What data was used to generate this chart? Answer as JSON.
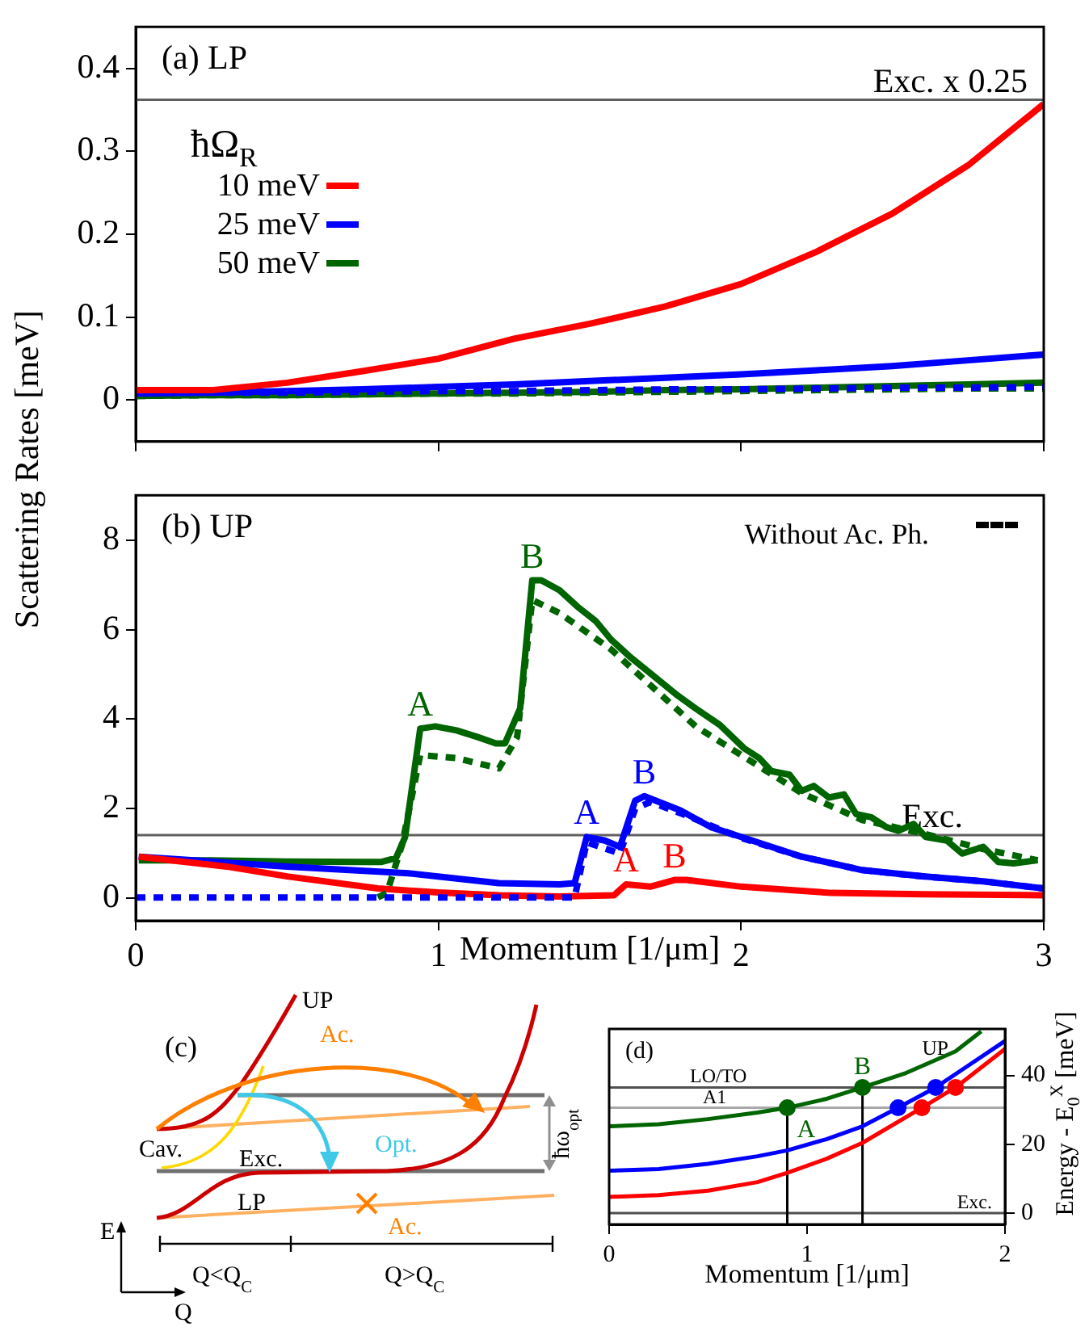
{
  "chart_data": [
    {
      "type": "line",
      "title": "(a) LP",
      "legend_title": "ħΩ$_{R}$",
      "legend": "left",
      "ylabel": "Scattering Rates [meV]",
      "xlim": [
        0,
        3
      ],
      "xticks": [
        0,
        1,
        2,
        3
      ],
      "ylim": [
        -0.05,
        0.45
      ],
      "yticks": [
        0,
        0.1,
        0.2,
        0.3,
        0.4
      ],
      "tick_labels": "y",
      "x": [
        0,
        0.25,
        0.5,
        0.75,
        1,
        1.25,
        1.5,
        1.75,
        2,
        2.25,
        2.5,
        2.75,
        3
      ],
      "series": [
        {
          "name": "10 meV",
          "color": "#ff0000",
          "values": [
            0.012,
            0.012,
            0.021,
            0.035,
            0.05,
            0.074,
            0.092,
            0.113,
            0.14,
            0.179,
            0.225,
            0.283,
            0.357
          ]
        },
        {
          "color": "#0000ff",
          "line_style": "dashed",
          "values": [
            0.008,
            0.009,
            0.009,
            0.01,
            0.011,
            0.011,
            0.012,
            0.013,
            0.013,
            0.014,
            0.015,
            0.015,
            0.016
          ]
        },
        {
          "color": "#006400",
          "line_style": "dashed",
          "values": [
            0.005,
            0.006,
            0.006,
            0.007,
            0.008,
            0.008,
            0.009,
            0.01,
            0.011,
            0.012,
            0.013,
            0.014,
            0.014
          ]
        },
        {
          "name": "25 meV",
          "color": "#0000ff",
          "values": [
            0.008,
            0.009,
            0.011,
            0.013,
            0.016,
            0.019,
            0.023,
            0.027,
            0.031,
            0.036,
            0.041,
            0.048,
            0.055
          ]
        },
        {
          "name": "50 meV",
          "color": "#006400",
          "values": [
            0.005,
            0.006,
            0.006,
            0.007,
            0.008,
            0.009,
            0.01,
            0.012,
            0.013,
            0.015,
            0.017,
            0.019,
            0.021
          ]
        }
      ],
      "ref_lines": [
        {
          "axis": "y",
          "value": 0.362,
          "label": "Exc. x 0.25",
          "color": "#606060"
        }
      ]
    },
    {
      "type": "line",
      "title": "(b) UP",
      "xlabel": "Momentum [1/μm]",
      "xlim": [
        0,
        3
      ],
      "xticks": [
        0,
        1,
        2,
        3
      ],
      "ylim": [
        -0.5,
        9
      ],
      "yticks": [
        0,
        2,
        4,
        6,
        8
      ],
      "series": [
        {
          "color": "#0000ff",
          "line_style": "dashed",
          "x": [
            0,
            0.4,
            0.8,
            1.2,
            1.45,
            1.49,
            1.6,
            1.65,
            1.7,
            1.8,
            2.0,
            2.2,
            2.4,
            2.6,
            2.8,
            3.0
          ],
          "values": [
            0.02,
            0.02,
            0.02,
            0.02,
            0.02,
            1.25,
            1.0,
            2.0,
            2.15,
            1.9,
            1.35,
            0.93,
            0.63,
            0.49,
            0.38,
            0.22
          ]
        },
        {
          "color": "#006400",
          "line_style": "dashed",
          "x": [
            0.8,
            0.83,
            0.88,
            0.94,
            1.06,
            1.2,
            1.26,
            1.31,
            1.4,
            1.57,
            1.85,
            2.0,
            2.2,
            2.4,
            2.6,
            2.8,
            2.98
          ],
          "values": [
            0.02,
            0.12,
            1.2,
            3.2,
            3.13,
            2.9,
            3.6,
            6.66,
            6.37,
            5.56,
            3.84,
            3.2,
            2.35,
            1.75,
            1.45,
            1.1,
            0.85
          ]
        },
        {
          "color": "#ff0000",
          "x": [
            0.01,
            0.3,
            0.5,
            0.8,
            1.0,
            1.2,
            1.4,
            1.58,
            1.62,
            1.7,
            1.78,
            1.82,
            2.0,
            2.3,
            2.6,
            3.0
          ],
          "values": [
            0.93,
            0.71,
            0.49,
            0.22,
            0.13,
            0.07,
            0.04,
            0.07,
            0.31,
            0.26,
            0.41,
            0.41,
            0.26,
            0.12,
            0.09,
            0.07
          ]
        },
        {
          "color": "#0000ff",
          "x": [
            0.01,
            0.5,
            0.9,
            1.2,
            1.4,
            1.45,
            1.49,
            1.55,
            1.6,
            1.65,
            1.68,
            1.8,
            1.9,
            2.0,
            2.2,
            2.4,
            2.6,
            2.8,
            3.0
          ],
          "values": [
            0.93,
            0.71,
            0.56,
            0.34,
            0.31,
            0.34,
            1.37,
            1.29,
            1.15,
            2.18,
            2.28,
            1.96,
            1.59,
            1.37,
            0.93,
            0.63,
            0.49,
            0.38,
            0.22
          ]
        },
        {
          "color": "#006400",
          "x": [
            0.01,
            0.25,
            0.5,
            0.75,
            0.81,
            0.86,
            0.89,
            0.94,
            0.99,
            1.06,
            1.13,
            1.19,
            1.22,
            1.27,
            1.31,
            1.34,
            1.4,
            1.46,
            1.52,
            1.57,
            1.63,
            1.71,
            1.79,
            1.85,
            1.93,
            2.01,
            2.06,
            2.1,
            2.16,
            2.2,
            2.24,
            2.29,
            2.34,
            2.38,
            2.43,
            2.48,
            2.52,
            2.57,
            2.61,
            2.68,
            2.73,
            2.8,
            2.85,
            2.9,
            2.98
          ],
          "values": [
            0.85,
            0.85,
            0.82,
            0.81,
            0.81,
            0.9,
            1.37,
            3.79,
            3.84,
            3.75,
            3.6,
            3.46,
            3.46,
            4.24,
            7.1,
            7.1,
            6.88,
            6.51,
            6.19,
            5.78,
            5.41,
            4.97,
            4.53,
            4.24,
            3.87,
            3.35,
            3.13,
            2.84,
            2.76,
            2.4,
            2.51,
            2.25,
            2.32,
            1.88,
            1.81,
            1.59,
            1.51,
            1.66,
            1.37,
            1.29,
            1.0,
            1.15,
            0.81,
            0.78,
            0.85
          ]
        }
      ],
      "ref_lines": [
        {
          "axis": "y",
          "value": 1.41,
          "label": "Exc.",
          "color": "#606060"
        }
      ],
      "annotations": [
        {
          "text": "A",
          "x": 0.94,
          "y": 3.79
        },
        {
          "text": "B",
          "x": 1.31,
          "y": 7.1
        },
        {
          "text": "A",
          "x": 1.49,
          "y": 1.37
        },
        {
          "text": "B",
          "x": 1.68,
          "y": 2.28
        },
        {
          "text": "A",
          "x": 1.62,
          "y": 0.31
        },
        {
          "text": "B",
          "x": 1.78,
          "y": 0.41
        },
        "Without Ac. Ph."
      ]
    },
    {
      "type": "other",
      "title": "(c)",
      "annotations": [
        "UP",
        "Ac.",
        "Cav.",
        "Exc.",
        "Opt.",
        "LP",
        "Ac.",
        "Q<Q$_{C}$",
        "Q>Q$_{C}$",
        "E",
        "Q",
        "ħω$_{opt}$"
      ]
    },
    {
      "type": "line",
      "title": "(d)",
      "xlabel": "Momentum [1/μm]",
      "ylabel": "Energy - E$_{0}$$^{X}$ [meV]",
      "xlim": [
        0,
        2
      ],
      "xticks": [
        0,
        1,
        2
      ],
      "ylim": [
        -3.3,
        53.5
      ],
      "yticks": [
        0,
        20,
        40
      ],
      "series": [
        {
          "color": "#006400",
          "x": [
            0,
            0.25,
            0.5,
            0.75,
            0.9,
            1.1,
            1.28,
            1.5,
            1.75,
            1.88
          ],
          "values": [
            25.2,
            25.8,
            27.3,
            29.2,
            30.6,
            33.2,
            36.5,
            40.7,
            47,
            52.8
          ]
        },
        {
          "color": "#0000ff",
          "x": [
            0,
            0.25,
            0.5,
            0.75,
            0.9,
            1.1,
            1.28,
            1.46,
            1.65,
            1.8,
            2
          ],
          "values": [
            12.3,
            12.8,
            14.3,
            16.5,
            18.2,
            21.5,
            25.2,
            30.6,
            36.5,
            42.3,
            50
          ]
        },
        {
          "color": "#ff0000",
          "x": [
            0,
            0.25,
            0.5,
            0.75,
            0.9,
            1.1,
            1.28,
            1.58,
            1.75,
            2
          ],
          "values": [
            4.7,
            5.2,
            6.5,
            9,
            11.7,
            15.8,
            20.4,
            30.6,
            36.5,
            47.7
          ]
        },
        {
          "type": "scatter",
          "marker": "circle",
          "color": "#006400",
          "x": [
            0.9,
            1.28
          ],
          "values": [
            30.6,
            36.5
          ]
        },
        {
          "type": "scatter",
          "marker": "circle",
          "color": "#0000ff",
          "x": [
            1.46,
            1.65
          ],
          "values": [
            30.6,
            36.5
          ]
        },
        {
          "type": "scatter",
          "marker": "circle",
          "color": "#ff0000",
          "x": [
            1.58,
            1.75
          ],
          "values": [
            30.6,
            36.5
          ]
        }
      ],
      "ref_lines": [
        {
          "axis": "y",
          "value": 36.5,
          "label": "LO/TO",
          "color": "#505050"
        },
        {
          "axis": "y",
          "value": 30.6,
          "label": "A1",
          "color": "#a8a8a8"
        },
        {
          "axis": "y",
          "value": 0,
          "label": "Exc.",
          "color": "#505050"
        },
        {
          "axis": "x",
          "value": 0.9,
          "color": "#000000"
        },
        {
          "axis": "x",
          "value": 1.28,
          "color": "#000000"
        }
      ],
      "annotations": [
        {
          "text": "A",
          "x": 0.9,
          "y": 30.6
        },
        {
          "text": "B",
          "x": 1.28,
          "y": 36.5
        },
        "UP"
      ]
    }
  ]
}
